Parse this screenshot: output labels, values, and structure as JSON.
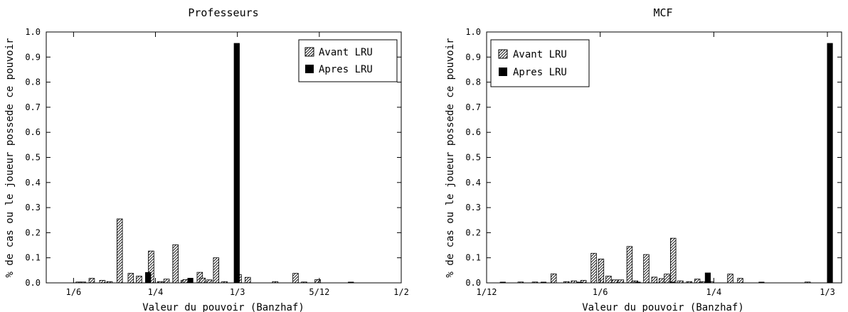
{
  "chart_data": [
    {
      "type": "bar",
      "title": "Professeurs",
      "xlabel": "Valeur du pouvoir (Banzhaf)",
      "ylabel": "% de cas ou le joueur possede ce pouvoir",
      "xlim": [
        0.1389,
        0.5
      ],
      "ylim": [
        0,
        1.0
      ],
      "x_ticks": [
        {
          "v": 0.16667,
          "label": "1/6"
        },
        {
          "v": 0.25,
          "label": "1/4"
        },
        {
          "v": 0.33333,
          "label": "1/3"
        },
        {
          "v": 0.41667,
          "label": "5/12"
        },
        {
          "v": 0.5,
          "label": "1/2"
        }
      ],
      "y_ticks": [
        {
          "v": 0.0,
          "label": "0.0"
        },
        {
          "v": 0.1,
          "label": "0.1"
        },
        {
          "v": 0.2,
          "label": "0.2"
        },
        {
          "v": 0.3,
          "label": "0.3"
        },
        {
          "v": 0.4,
          "label": "0.4"
        },
        {
          "v": 0.5,
          "label": "0.5"
        },
        {
          "v": 0.6,
          "label": "0.6"
        },
        {
          "v": 0.7,
          "label": "0.7"
        },
        {
          "v": 0.8,
          "label": "0.8"
        },
        {
          "v": 0.9,
          "label": "0.9"
        },
        {
          "v": 1.0,
          "label": "1.0"
        }
      ],
      "bar_width": 0.0056,
      "legend": {
        "position": "top-right"
      },
      "series": [
        {
          "name": "Avant LRU",
          "pattern": "hatch",
          "x": [
            0.1719,
            0.1763,
            0.1852,
            0.196,
            0.2033,
            0.2136,
            0.2249,
            0.2333,
            0.2456,
            0.2549,
            0.2613,
            0.2704,
            0.2788,
            0.2807,
            0.2951,
            0.2979,
            0.3047,
            0.3117,
            0.3202,
            0.3346,
            0.3439,
            0.3718,
            0.3925,
            0.4012,
            0.415
          ],
          "values": [
            0.002,
            0.002,
            0.018,
            0.01,
            0.005,
            0.255,
            0.038,
            0.027,
            0.127,
            0.005,
            0.015,
            0.152,
            0.01,
            0.013,
            0.042,
            0.019,
            0.012,
            0.1,
            0.005,
            0.033,
            0.022,
            0.005,
            0.038,
            0.003,
            0.013
          ]
        },
        {
          "name": "Apres LRU",
          "pattern": "solid",
          "x": [
            0.2425,
            0.2855,
            0.3327,
            0.4488
          ],
          "values": [
            0.042,
            0.019,
            0.955,
            0.003
          ]
        }
      ]
    },
    {
      "type": "bar",
      "title": "MCF",
      "xlabel": "Valeur du pouvoir (Banzhaf)",
      "ylabel": "% de cas ou le joueur possede ce pouvoir",
      "xlim": [
        0.08333,
        0.34375
      ],
      "ylim": [
        0,
        1.0
      ],
      "x_ticks": [
        {
          "v": 0.08333,
          "label": "1/12"
        },
        {
          "v": 0.16667,
          "label": "1/6"
        },
        {
          "v": 0.25,
          "label": "1/4"
        },
        {
          "v": 0.33333,
          "label": "1/3"
        }
      ],
      "y_ticks": [
        {
          "v": 0.0,
          "label": "0.0"
        },
        {
          "v": 0.1,
          "label": "0.1"
        },
        {
          "v": 0.2,
          "label": "0.2"
        },
        {
          "v": 0.3,
          "label": "0.3"
        },
        {
          "v": 0.4,
          "label": "0.4"
        },
        {
          "v": 0.5,
          "label": "0.5"
        },
        {
          "v": 0.6,
          "label": "0.6"
        },
        {
          "v": 0.7,
          "label": "0.7"
        },
        {
          "v": 0.8,
          "label": "0.8"
        },
        {
          "v": 0.9,
          "label": "0.9"
        },
        {
          "v": 1.0,
          "label": "1.0"
        }
      ],
      "bar_width": 0.004,
      "legend": {
        "position": "top-left"
      },
      "series": [
        {
          "name": "Avant LRU",
          "pattern": "hatch",
          "x": [
            0.1083,
            0.1188,
            0.1325,
            0.1419,
            0.1474,
            0.1544,
            0.1619,
            0.1673,
            0.1728,
            0.1774,
            0.1819,
            0.1882,
            0.1923,
            0.2005,
            0.2064,
            0.2118,
            0.2156,
            0.2202,
            0.2255,
            0.2319,
            0.2379,
            0.2424,
            0.2474,
            0.2621,
            0.2694,
            0.3188
          ],
          "values": [
            0.003,
            0.003,
            0.036,
            0.005,
            0.008,
            0.01,
            0.118,
            0.095,
            0.027,
            0.012,
            0.012,
            0.145,
            0.008,
            0.113,
            0.023,
            0.017,
            0.035,
            0.178,
            0.008,
            0.005,
            0.015,
            0.005,
            0.005,
            0.035,
            0.018,
            0.002
          ]
        },
        {
          "name": "Apres LRU",
          "pattern": "solid",
          "x": [
            0.0952,
            0.1251,
            0.1515,
            0.1942,
            0.2196,
            0.2456,
            0.285,
            0.3352
          ],
          "values": [
            0.002,
            0.002,
            0.002,
            0.002,
            0.002,
            0.04,
            0.002,
            0.955
          ]
        }
      ]
    }
  ]
}
